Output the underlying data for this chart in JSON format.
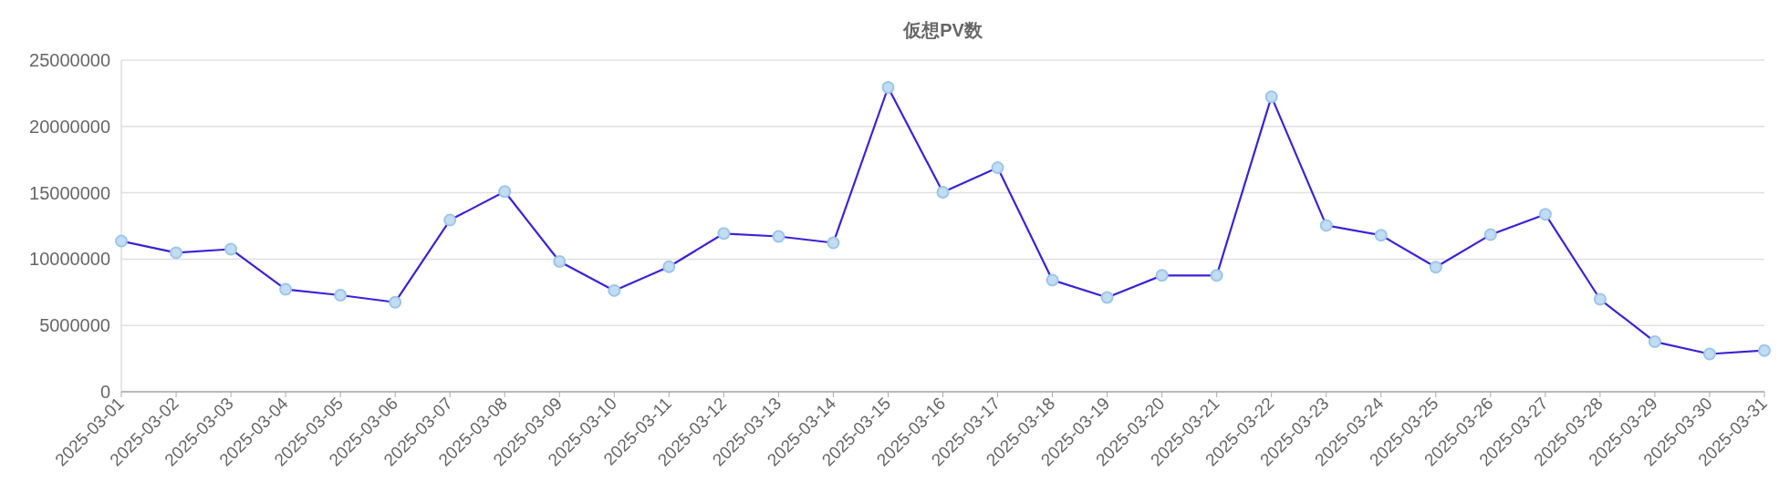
{
  "chart_data": {
    "type": "line",
    "title": "仮想PV数",
    "categories": [
      "2025-03-01",
      "2025-03-02",
      "2025-03-03",
      "2025-03-04",
      "2025-03-05",
      "2025-03-06",
      "2025-03-07",
      "2025-03-08",
      "2025-03-09",
      "2025-03-10",
      "2025-03-11",
      "2025-03-12",
      "2025-03-13",
      "2025-03-14",
      "2025-03-15",
      "2025-03-16",
      "2025-03-17",
      "2025-03-18",
      "2025-03-19",
      "2025-03-20",
      "2025-03-21",
      "2025-03-22",
      "2025-03-23",
      "2025-03-24",
      "2025-03-25",
      "2025-03-26",
      "2025-03-27",
      "2025-03-28",
      "2025-03-29",
      "2025-03-30",
      "2025-03-31"
    ],
    "series": [
      {
        "color": "#3a22d6",
        "values": [
          11360000,
          10480000,
          10750000,
          7720000,
          7280000,
          6750000,
          12940000,
          15090000,
          9820000,
          7630000,
          9430000,
          11930000,
          11710000,
          11230000,
          22940000,
          15040000,
          16890000,
          8420000,
          7110000,
          8770000,
          8770000,
          22240000,
          12540000,
          11800000,
          9390000,
          11840000,
          13380000,
          6970000,
          3770000,
          2850000,
          3110000
        ]
      }
    ],
    "ylim": [
      0,
      25000000
    ],
    "yticks": [
      0,
      5000000,
      10000000,
      15000000,
      20000000,
      25000000
    ],
    "grid": "y",
    "marker": "circle",
    "line_style": "solid"
  }
}
